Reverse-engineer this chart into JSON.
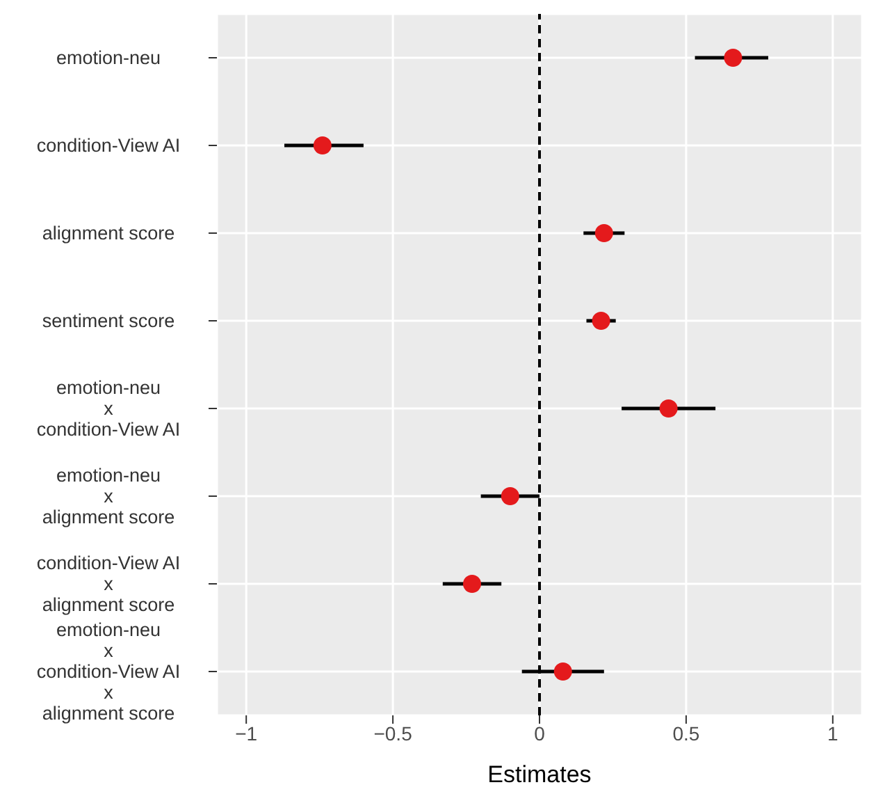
{
  "chart_data": {
    "type": "scatter",
    "orientation": "horizontal",
    "xlabel": "Estimates",
    "categories": [
      "emotion-neu",
      "condition-View AI",
      "alignment score",
      "sentiment score",
      "emotion-neu\nx\ncondition-View AI",
      "emotion-neu\nx\nalignment score",
      "condition-View AI\nx\nalignment score",
      "emotion-neu\nx\ncondition-View AI\nx\nalignment score"
    ],
    "color": "#e41a1c",
    "values": [
      0.66,
      -0.74,
      0.22,
      0.21,
      0.44,
      -0.1,
      -0.23,
      0.08
    ],
    "errors": [
      [
        0.53,
        0.78
      ],
      [
        -0.87,
        -0.6
      ],
      [
        0.15,
        0.29
      ],
      [
        0.16,
        0.26
      ],
      [
        0.28,
        0.6
      ],
      [
        -0.2,
        0.0
      ],
      [
        -0.33,
        -0.13
      ],
      [
        -0.06,
        0.22
      ]
    ],
    "xlim": [
      -1.1,
      1.1
    ],
    "xticks": [
      {
        "value": -1,
        "label": "−1"
      },
      {
        "value": -0.5,
        "label": "−0.5"
      },
      0,
      0.5,
      1
    ],
    "ref_lines": [
      {
        "axis": "x",
        "value": 0,
        "color": "#000000",
        "line_style": "dashed"
      }
    ],
    "grid": true,
    "marker": "circle"
  }
}
